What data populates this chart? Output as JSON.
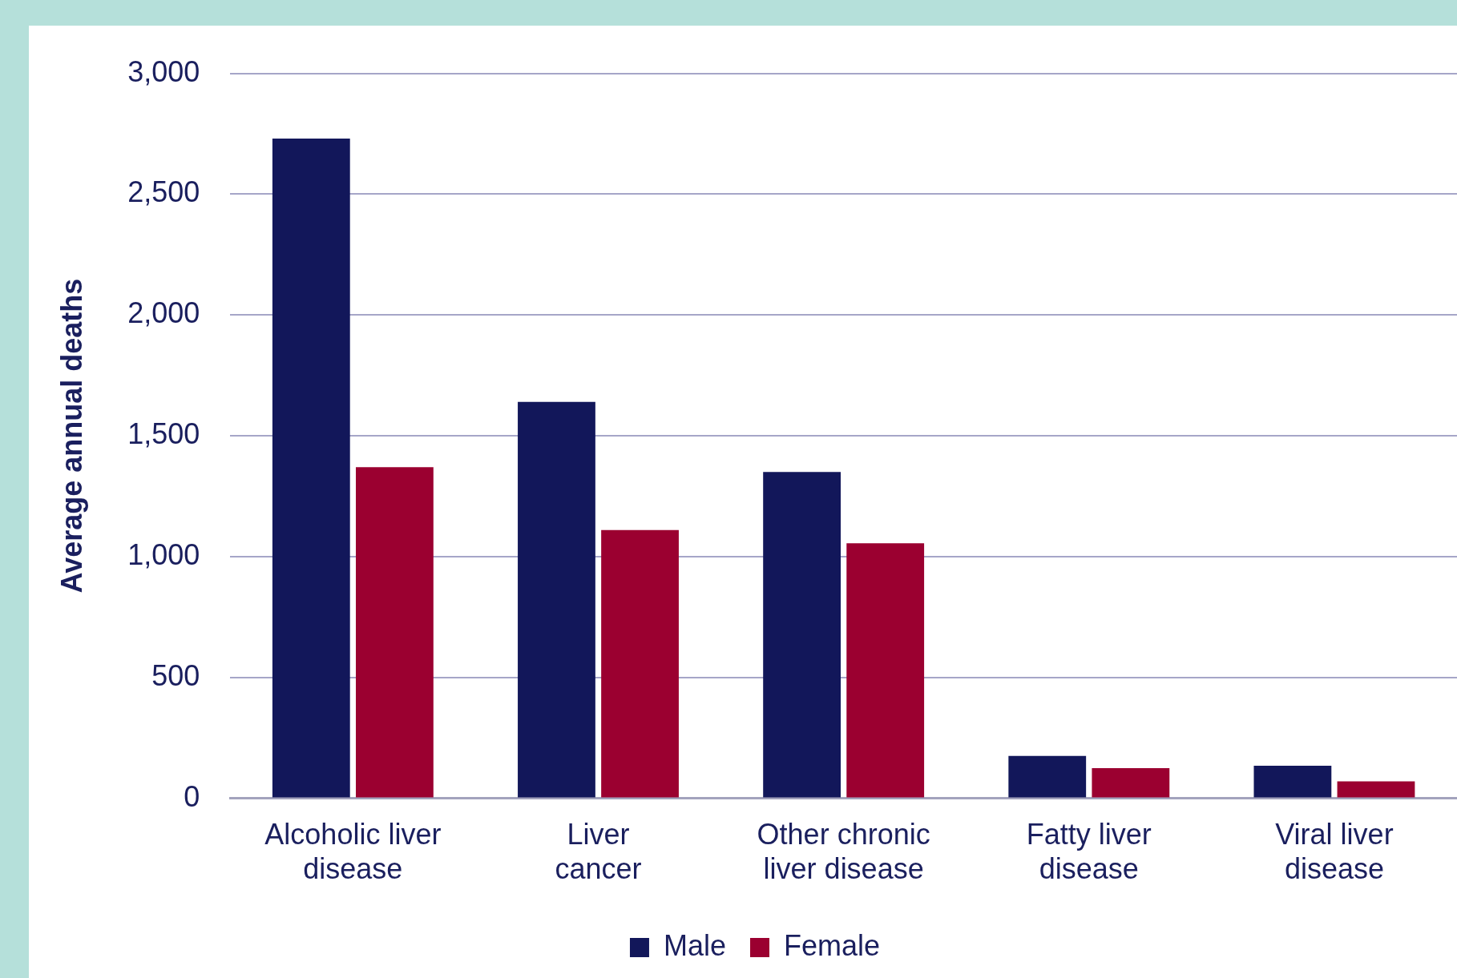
{
  "chart_data": {
    "type": "bar",
    "ylabel": "Average annual deaths",
    "categories": [
      "Alcoholic liver disease",
      "Liver cancer",
      "Other chronic liver disease",
      "Fatty liver disease",
      "Viral liver disease"
    ],
    "series": [
      {
        "name": "Male",
        "color": "#12175a",
        "values": [
          2730,
          1640,
          1350,
          175,
          135
        ]
      },
      {
        "name": "Female",
        "color": "#9b0030",
        "values": [
          1370,
          1110,
          1055,
          125,
          70
        ]
      }
    ],
    "ylim": [
      0,
      3000
    ],
    "yticks": [
      {
        "value": 0,
        "label": "0"
      },
      {
        "value": 500,
        "label": "500"
      },
      {
        "value": 1000,
        "label": "1,000"
      },
      {
        "value": 1500,
        "label": "1,500"
      },
      {
        "value": 2000,
        "label": "2,000"
      },
      {
        "value": 2500,
        "label": "2,500"
      },
      {
        "value": 3000,
        "label": "3,000"
      }
    ],
    "grid": "y",
    "legend": "bottom"
  }
}
